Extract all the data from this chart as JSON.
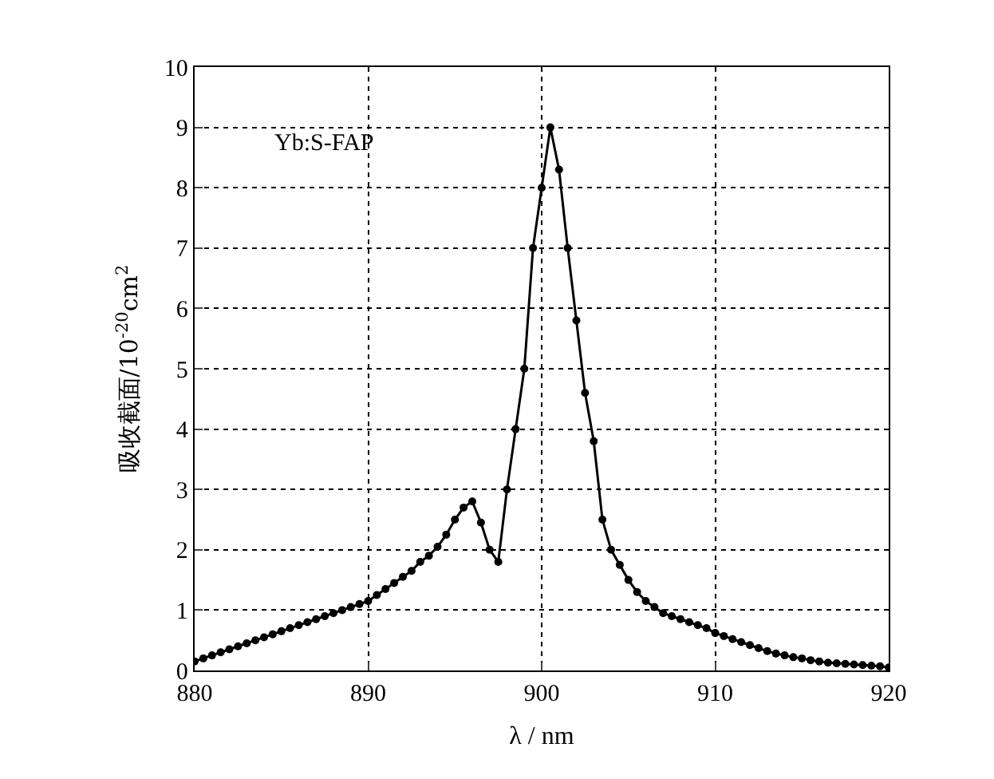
{
  "chart_data": {
    "type": "line",
    "xlabel": "λ / nm",
    "ylabel": "吸收截面/10$^{-20}$cm$^{2}$",
    "annotations": [
      "Yb:S-FAP"
    ],
    "x": [
      880,
      880.5,
      881,
      881.5,
      882,
      882.5,
      883,
      883.5,
      884,
      884.5,
      885,
      885.5,
      886,
      886.5,
      887,
      887.5,
      888,
      888.5,
      889,
      889.5,
      890,
      890.5,
      891,
      891.5,
      892,
      892.5,
      893,
      893.5,
      894,
      894.5,
      895,
      895.5,
      896,
      896.5,
      897,
      897.5,
      898,
      898.5,
      899,
      899.5,
      900,
      900.5,
      901,
      901.5,
      902,
      902.5,
      903,
      903.5,
      904,
      904.5,
      905,
      905.5,
      906,
      906.5,
      907,
      907.5,
      908,
      908.5,
      909,
      909.5,
      910,
      910.5,
      911,
      911.5,
      912,
      912.5,
      913,
      913.5,
      914,
      914.5,
      915,
      915.5,
      916,
      916.5,
      917,
      917.5,
      918,
      918.5,
      919,
      919.5,
      920
    ],
    "series": [
      {
        "color": "#000000",
        "values": [
          0.15,
          0.2,
          0.25,
          0.3,
          0.35,
          0.4,
          0.45,
          0.5,
          0.55,
          0.6,
          0.65,
          0.7,
          0.75,
          0.8,
          0.85,
          0.9,
          0.95,
          1.0,
          1.05,
          1.1,
          1.15,
          1.25,
          1.35,
          1.45,
          1.55,
          1.65,
          1.8,
          1.9,
          2.05,
          2.25,
          2.5,
          2.7,
          2.8,
          2.45,
          2.0,
          1.8,
          3.0,
          4.0,
          5.0,
          7.0,
          8.0,
          9.0,
          8.3,
          7.0,
          5.8,
          4.6,
          3.8,
          2.5,
          2.0,
          1.75,
          1.5,
          1.3,
          1.15,
          1.05,
          0.95,
          0.9,
          0.85,
          0.8,
          0.75,
          0.7,
          0.62,
          0.57,
          0.52,
          0.47,
          0.42,
          0.37,
          0.32,
          0.28,
          0.25,
          0.22,
          0.2,
          0.17,
          0.15,
          0.13,
          0.12,
          0.11,
          0.1,
          0.09,
          0.08,
          0.07,
          0.05
        ]
      }
    ],
    "xlim": [
      880,
      920
    ],
    "xticks": [
      880,
      890,
      900,
      910,
      920
    ],
    "ylim": [
      0,
      10
    ],
    "yticks": [
      0,
      1,
      2,
      3,
      4,
      5,
      6,
      7,
      8,
      9,
      10
    ],
    "grid": true,
    "legend": false,
    "marker": "circle",
    "line_style": "solid"
  }
}
